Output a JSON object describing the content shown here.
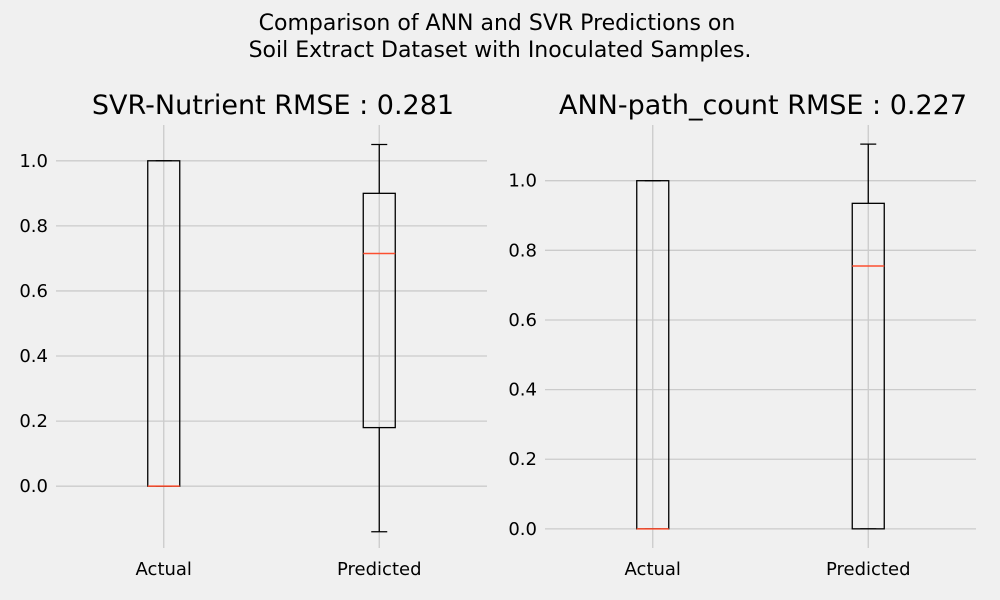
{
  "figure": {
    "title_line1": "Comparison of ANN and SVR Predictions on",
    "title_line2": "Soil Extract Dataset with Inoculated Samples.",
    "background": "#f0f0f0",
    "median_color": "#fc4f30"
  },
  "chart_data": [
    {
      "type": "box",
      "title": "SVR-Nutrient RMSE : 0.281",
      "categories": [
        "Actual",
        "Predicted"
      ],
      "yticks": [
        0.0,
        0.2,
        0.4,
        0.6,
        0.8,
        1.0
      ],
      "ylim": [
        -0.19,
        1.11
      ],
      "grid": true,
      "boxes": [
        {
          "category": "Actual",
          "whisker_low": 0.0,
          "q1": 0.0,
          "median": 0.0,
          "q3": 1.0,
          "whisker_high": 1.0
        },
        {
          "category": "Predicted",
          "whisker_low": -0.14,
          "q1": 0.18,
          "median": 0.715,
          "q3": 0.9,
          "whisker_high": 1.05
        }
      ]
    },
    {
      "type": "box",
      "title": "ANN-path_count RMSE : 0.227",
      "categories": [
        "Actual",
        "Predicted"
      ],
      "yticks": [
        0.0,
        0.2,
        0.4,
        0.6,
        0.8,
        1.0
      ],
      "ylim": [
        -0.055,
        1.16
      ],
      "grid": true,
      "boxes": [
        {
          "category": "Actual",
          "whisker_low": 0.0,
          "q1": 0.0,
          "median": 0.0,
          "q3": 1.0,
          "whisker_high": 1.0
        },
        {
          "category": "Predicted",
          "whisker_low": 0.0,
          "q1": 0.0,
          "median": 0.755,
          "q3": 0.935,
          "whisker_high": 1.105
        }
      ]
    }
  ]
}
